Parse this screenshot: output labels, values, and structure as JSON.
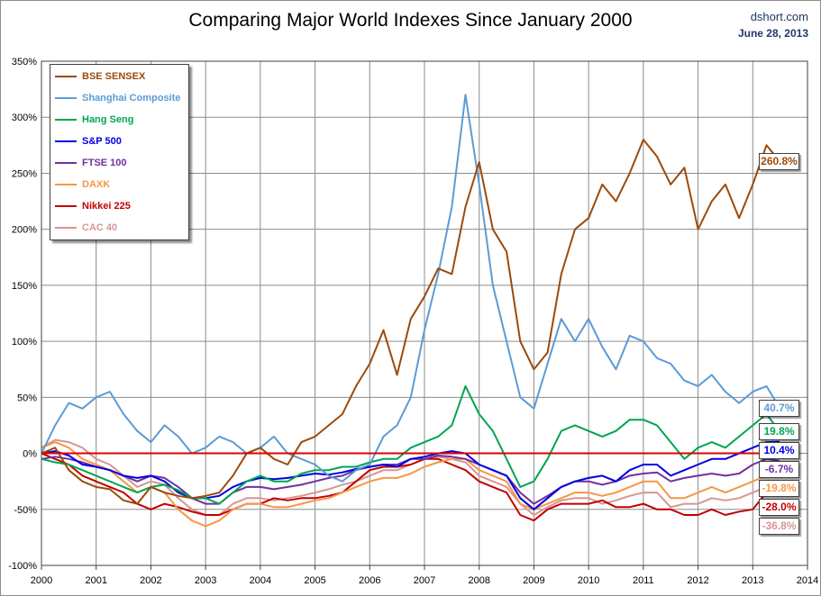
{
  "header": {
    "title": "Comparing Major World Indexes Since January 2000",
    "source": "dshort.com",
    "date": "June 28, 2013"
  },
  "chart_data": {
    "type": "line",
    "title": "Comparing Major World Indexes Since January 2000",
    "xlabel": "",
    "ylabel": "",
    "xlim": [
      2000,
      2014
    ],
    "ylim": [
      -100,
      350
    ],
    "x_ticks": [
      "2000",
      "2001",
      "2002",
      "2003",
      "2004",
      "2005",
      "2006",
      "2007",
      "2008",
      "2009",
      "2010",
      "2011",
      "2012",
      "2013",
      "2014"
    ],
    "y_ticks": [
      "-100%",
      "-50%",
      "0%",
      "50%",
      "100%",
      "150%",
      "200%",
      "250%",
      "300%",
      "350%"
    ],
    "grid": true,
    "legend_position": "top-left",
    "zero_line_color": "#e00000",
    "series": [
      {
        "name": "BSE SENSEX",
        "color": "#9c4a0a",
        "end_label": "260.8%",
        "end_value": 260.8,
        "x": [
          2000,
          2000.25,
          2000.5,
          2000.75,
          2001,
          2001.25,
          2001.5,
          2001.75,
          2002,
          2002.25,
          2002.5,
          2002.75,
          2003,
          2003.25,
          2003.5,
          2003.75,
          2004,
          2004.25,
          2004.5,
          2004.75,
          2005,
          2005.25,
          2005.5,
          2005.75,
          2006,
          2006.25,
          2006.5,
          2006.75,
          2007,
          2007.25,
          2007.5,
          2007.75,
          2008,
          2008.25,
          2008.5,
          2008.75,
          2009,
          2009.25,
          2009.5,
          2009.75,
          2010,
          2010.25,
          2010.5,
          2010.75,
          2011,
          2011.25,
          2011.5,
          2011.75,
          2012,
          2012.25,
          2012.5,
          2012.75,
          2013,
          2013.25,
          2013.49
        ],
        "y": [
          0,
          5,
          -15,
          -25,
          -30,
          -32,
          -42,
          -45,
          -30,
          -35,
          -38,
          -40,
          -38,
          -35,
          -20,
          0,
          5,
          -5,
          -10,
          10,
          15,
          25,
          35,
          60,
          80,
          110,
          70,
          120,
          140,
          165,
          160,
          220,
          260,
          200,
          180,
          100,
          75,
          90,
          160,
          200,
          210,
          240,
          225,
          250,
          280,
          265,
          240,
          255,
          200,
          225,
          240,
          210,
          240,
          275,
          260.8
        ]
      },
      {
        "name": "Shanghai Composite",
        "color": "#5b9bd5",
        "end_label": "40.7%",
        "end_value": 40.7,
        "x": [
          2000,
          2000.25,
          2000.5,
          2000.75,
          2001,
          2001.25,
          2001.5,
          2001.75,
          2002,
          2002.25,
          2002.5,
          2002.75,
          2003,
          2003.25,
          2003.5,
          2003.75,
          2004,
          2004.25,
          2004.5,
          2004.75,
          2005,
          2005.25,
          2005.5,
          2005.75,
          2006,
          2006.25,
          2006.5,
          2006.75,
          2007,
          2007.25,
          2007.5,
          2007.75,
          2008,
          2008.25,
          2008.5,
          2008.75,
          2009,
          2009.25,
          2009.5,
          2009.75,
          2010,
          2010.25,
          2010.5,
          2010.75,
          2011,
          2011.25,
          2011.5,
          2011.75,
          2012,
          2012.25,
          2012.5,
          2012.75,
          2013,
          2013.25,
          2013.49
        ],
        "y": [
          0,
          25,
          45,
          40,
          50,
          55,
          35,
          20,
          10,
          25,
          15,
          0,
          5,
          15,
          10,
          0,
          5,
          15,
          0,
          -5,
          -10,
          -20,
          -25,
          -15,
          -10,
          15,
          25,
          50,
          110,
          160,
          220,
          320,
          240,
          150,
          100,
          50,
          40,
          80,
          120,
          100,
          120,
          95,
          75,
          105,
          100,
          85,
          80,
          65,
          60,
          70,
          55,
          45,
          55,
          60,
          40.7
        ]
      },
      {
        "name": "Hang Seng",
        "color": "#00a550",
        "end_label": "19.8%",
        "end_value": 19.8,
        "x": [
          2000,
          2000.25,
          2000.5,
          2000.75,
          2001,
          2001.25,
          2001.5,
          2001.75,
          2002,
          2002.25,
          2002.5,
          2002.75,
          2003,
          2003.25,
          2003.5,
          2003.75,
          2004,
          2004.25,
          2004.5,
          2004.75,
          2005,
          2005.25,
          2005.5,
          2005.75,
          2006,
          2006.25,
          2006.5,
          2006.75,
          2007,
          2007.25,
          2007.5,
          2007.75,
          2008,
          2008.25,
          2008.5,
          2008.75,
          2009,
          2009.25,
          2009.5,
          2009.75,
          2010,
          2010.25,
          2010.5,
          2010.75,
          2011,
          2011.25,
          2011.5,
          2011.75,
          2012,
          2012.25,
          2012.5,
          2012.75,
          2013,
          2013.25,
          2013.49
        ],
        "y": [
          -5,
          -8,
          -10,
          -15,
          -20,
          -25,
          -30,
          -35,
          -30,
          -28,
          -33,
          -40,
          -40,
          -45,
          -35,
          -25,
          -20,
          -25,
          -25,
          -18,
          -15,
          -15,
          -12,
          -12,
          -8,
          -5,
          -5,
          5,
          10,
          15,
          25,
          60,
          35,
          20,
          -5,
          -30,
          -25,
          -5,
          20,
          25,
          20,
          15,
          20,
          30,
          30,
          25,
          10,
          -5,
          5,
          10,
          5,
          15,
          25,
          35,
          19.8
        ]
      },
      {
        "name": "S&P 500",
        "color": "#0000e0",
        "end_label": "10.4%",
        "end_value": 10.4,
        "x": [
          2000,
          2000.25,
          2000.5,
          2000.75,
          2001,
          2001.25,
          2001.5,
          2001.75,
          2002,
          2002.25,
          2002.5,
          2002.75,
          2003,
          2003.25,
          2003.5,
          2003.75,
          2004,
          2004.25,
          2004.5,
          2004.75,
          2005,
          2005.25,
          2005.5,
          2005.75,
          2006,
          2006.25,
          2006.5,
          2006.75,
          2007,
          2007.25,
          2007.5,
          2007.75,
          2008,
          2008.25,
          2008.5,
          2008.75,
          2009,
          2009.25,
          2009.5,
          2009.75,
          2010,
          2010.25,
          2010.5,
          2010.75,
          2011,
          2011.25,
          2011.5,
          2011.75,
          2012,
          2012.25,
          2012.5,
          2012.75,
          2013,
          2013.25,
          2013.49
        ],
        "y": [
          0,
          2,
          -2,
          -10,
          -12,
          -15,
          -20,
          -22,
          -20,
          -25,
          -35,
          -40,
          -40,
          -38,
          -30,
          -25,
          -22,
          -23,
          -22,
          -20,
          -18,
          -19,
          -17,
          -14,
          -12,
          -10,
          -12,
          -5,
          -3,
          0,
          2,
          0,
          -10,
          -15,
          -20,
          -40,
          -50,
          -40,
          -30,
          -25,
          -22,
          -20,
          -25,
          -15,
          -10,
          -10,
          -20,
          -15,
          -10,
          -5,
          -5,
          0,
          5,
          10,
          10.4
        ]
      },
      {
        "name": "FTSE 100",
        "color": "#7030a0",
        "end_label": "-6.7%",
        "end_value": -6.7,
        "x": [
          2000,
          2000.25,
          2000.5,
          2000.75,
          2001,
          2001.25,
          2001.5,
          2001.75,
          2002,
          2002.25,
          2002.5,
          2002.75,
          2003,
          2003.25,
          2003.5,
          2003.75,
          2004,
          2004.25,
          2004.5,
          2004.75,
          2005,
          2005.25,
          2005.5,
          2005.75,
          2006,
          2006.25,
          2006.5,
          2006.75,
          2007,
          2007.25,
          2007.5,
          2007.75,
          2008,
          2008.25,
          2008.5,
          2008.75,
          2009,
          2009.25,
          2009.5,
          2009.75,
          2010,
          2010.25,
          2010.5,
          2010.75,
          2011,
          2011.25,
          2011.5,
          2011.75,
          2012,
          2012.25,
          2012.5,
          2012.75,
          2013,
          2013.25,
          2013.49
        ],
        "y": [
          -5,
          -3,
          -5,
          -8,
          -12,
          -15,
          -20,
          -25,
          -20,
          -22,
          -30,
          -40,
          -45,
          -45,
          -35,
          -30,
          -30,
          -32,
          -30,
          -28,
          -25,
          -22,
          -20,
          -15,
          -12,
          -10,
          -10,
          -5,
          -5,
          -2,
          -3,
          -5,
          -10,
          -15,
          -20,
          -35,
          -45,
          -38,
          -30,
          -25,
          -25,
          -28,
          -25,
          -20,
          -18,
          -17,
          -25,
          -22,
          -20,
          -18,
          -20,
          -18,
          -10,
          -5,
          -6.7
        ]
      },
      {
        "name": "DAXK",
        "color": "#f79646",
        "end_label": "-19.8%",
        "end_value": -19.8,
        "x": [
          2000,
          2000.25,
          2000.5,
          2000.75,
          2001,
          2001.25,
          2001.5,
          2001.75,
          2002,
          2002.25,
          2002.5,
          2002.75,
          2003,
          2003.25,
          2003.5,
          2003.75,
          2004,
          2004.25,
          2004.5,
          2004.75,
          2005,
          2005.25,
          2005.5,
          2005.75,
          2006,
          2006.25,
          2006.5,
          2006.75,
          2007,
          2007.25,
          2007.5,
          2007.75,
          2008,
          2008.25,
          2008.5,
          2008.75,
          2009,
          2009.25,
          2009.5,
          2009.75,
          2010,
          2010.25,
          2010.5,
          2010.75,
          2011,
          2011.25,
          2011.5,
          2011.75,
          2012,
          2012.25,
          2012.5,
          2012.75,
          2013,
          2013.25,
          2013.49
        ],
        "y": [
          5,
          10,
          5,
          -5,
          -10,
          -15,
          -25,
          -35,
          -30,
          -35,
          -50,
          -60,
          -65,
          -60,
          -50,
          -45,
          -45,
          -48,
          -48,
          -45,
          -42,
          -40,
          -35,
          -30,
          -25,
          -22,
          -22,
          -18,
          -12,
          -8,
          -5,
          -5,
          -15,
          -20,
          -25,
          -45,
          -50,
          -45,
          -40,
          -35,
          -35,
          -38,
          -35,
          -30,
          -25,
          -25,
          -40,
          -40,
          -35,
          -30,
          -35,
          -30,
          -25,
          -20,
          -19.8
        ]
      },
      {
        "name": "Nikkei 225",
        "color": "#c00000",
        "end_label": "-28.0%",
        "end_value": -28.0,
        "x": [
          2000,
          2000.25,
          2000.5,
          2000.75,
          2001,
          2001.25,
          2001.5,
          2001.75,
          2002,
          2002.25,
          2002.5,
          2002.75,
          2003,
          2003.25,
          2003.5,
          2003.75,
          2004,
          2004.25,
          2004.5,
          2004.75,
          2005,
          2005.25,
          2005.5,
          2005.75,
          2006,
          2006.25,
          2006.5,
          2006.75,
          2007,
          2007.25,
          2007.5,
          2007.75,
          2008,
          2008.25,
          2008.5,
          2008.75,
          2009,
          2009.25,
          2009.5,
          2009.75,
          2010,
          2010.25,
          2010.5,
          2010.75,
          2011,
          2011.25,
          2011.5,
          2011.75,
          2012,
          2012.25,
          2012.5,
          2012.75,
          2013,
          2013.25,
          2013.49
        ],
        "y": [
          0,
          -5,
          -10,
          -20,
          -25,
          -30,
          -35,
          -45,
          -50,
          -45,
          -48,
          -52,
          -55,
          -55,
          -50,
          -45,
          -45,
          -40,
          -42,
          -40,
          -40,
          -38,
          -35,
          -25,
          -15,
          -12,
          -12,
          -10,
          -5,
          -5,
          -10,
          -15,
          -25,
          -30,
          -35,
          -55,
          -60,
          -50,
          -45,
          -45,
          -45,
          -42,
          -48,
          -48,
          -45,
          -50,
          -50,
          -55,
          -55,
          -50,
          -55,
          -52,
          -50,
          -35,
          -28.0
        ]
      },
      {
        "name": "CAC 40",
        "color": "#d99594",
        "end_label": "-36.8%",
        "end_value": -36.8,
        "x": [
          2000,
          2000.25,
          2000.5,
          2000.75,
          2001,
          2001.25,
          2001.5,
          2001.75,
          2002,
          2002.25,
          2002.5,
          2002.75,
          2003,
          2003.25,
          2003.5,
          2003.75,
          2004,
          2004.25,
          2004.5,
          2004.75,
          2005,
          2005.25,
          2005.5,
          2005.75,
          2006,
          2006.25,
          2006.5,
          2006.75,
          2007,
          2007.25,
          2007.5,
          2007.75,
          2008,
          2008.25,
          2008.5,
          2008.75,
          2009,
          2009.25,
          2009.5,
          2009.75,
          2010,
          2010.25,
          2010.5,
          2010.75,
          2011,
          2011.25,
          2011.5,
          2011.75,
          2012,
          2012.25,
          2012.5,
          2012.75,
          2013,
          2013.25,
          2013.49
        ],
        "y": [
          5,
          12,
          10,
          5,
          -5,
          -10,
          -20,
          -30,
          -25,
          -28,
          -40,
          -50,
          -55,
          -55,
          -45,
          -40,
          -40,
          -42,
          -40,
          -38,
          -35,
          -32,
          -28,
          -25,
          -20,
          -15,
          -15,
          -10,
          -5,
          -3,
          -5,
          -8,
          -20,
          -25,
          -30,
          -45,
          -55,
          -48,
          -42,
          -40,
          -40,
          -45,
          -42,
          -38,
          -35,
          -35,
          -48,
          -45,
          -45,
          -40,
          -42,
          -40,
          -35,
          -30,
          -36.8
        ]
      }
    ]
  }
}
